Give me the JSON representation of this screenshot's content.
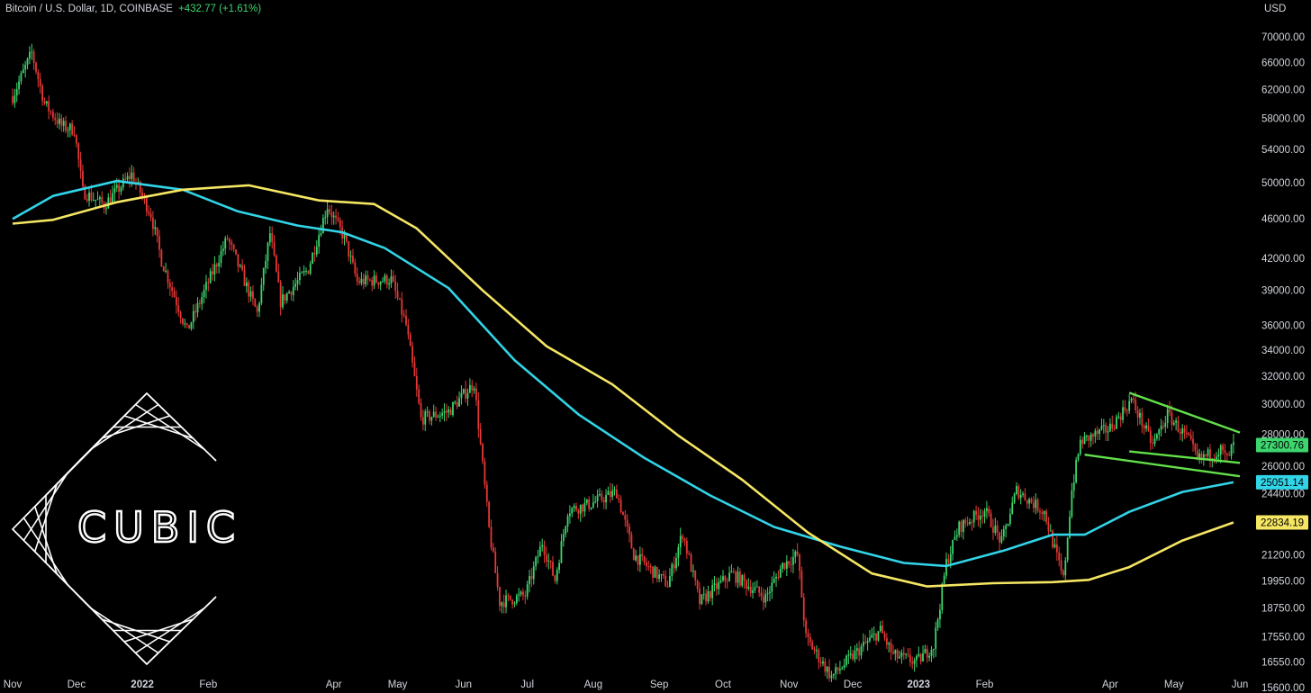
{
  "header": {
    "symbol": "Bitcoin / U.S. Dollar, 1D, COINBASE",
    "change": "+432.77 (+1.61%)",
    "currency": "USD"
  },
  "logo": {
    "text": "CUBIC"
  },
  "colors": {
    "background": "#000000",
    "up": "#3dd56d",
    "down": "#e53935",
    "ma_cyan": "#32d4e8",
    "ma_yellow": "#f5e663",
    "trendline": "#62e04a"
  },
  "chart_data": {
    "type": "candlestick",
    "scale": "log",
    "y_ticks": [
      "70000.00",
      "66000.00",
      "62000.00",
      "58000.00",
      "54000.00",
      "50000.00",
      "46000.00",
      "42000.00",
      "39000.00",
      "36000.00",
      "34000.00",
      "32000.00",
      "30000.00",
      "28000.00",
      "26000.00",
      "24400.00",
      "22800.00",
      "21200.00",
      "19950.00",
      "18750.00",
      "17550.00",
      "16550.00",
      "15600.00"
    ],
    "x_labels": [
      {
        "text": "Nov",
        "date": "2021-11-01",
        "bold": false
      },
      {
        "text": "Dec",
        "date": "2021-12-01",
        "bold": false
      },
      {
        "text": "2022",
        "date": "2022-01-01",
        "bold": true
      },
      {
        "text": "Feb",
        "date": "2022-02-01",
        "bold": false
      },
      {
        "text": "Apr",
        "date": "2022-04-01",
        "bold": false
      },
      {
        "text": "May",
        "date": "2022-05-01",
        "bold": false
      },
      {
        "text": "Jun",
        "date": "2022-06-01",
        "bold": false
      },
      {
        "text": "Jul",
        "date": "2022-07-01",
        "bold": false
      },
      {
        "text": "Aug",
        "date": "2022-08-01",
        "bold": false
      },
      {
        "text": "Sep",
        "date": "2022-09-01",
        "bold": false
      },
      {
        "text": "Oct",
        "date": "2022-10-01",
        "bold": false
      },
      {
        "text": "Nov",
        "date": "2022-11-01",
        "bold": false
      },
      {
        "text": "Dec",
        "date": "2022-12-01",
        "bold": false
      },
      {
        "text": "2023",
        "date": "2023-01-01",
        "bold": true
      },
      {
        "text": "Feb",
        "date": "2023-02-01",
        "bold": false
      },
      {
        "text": "Apr",
        "date": "2023-04-01",
        "bold": false
      },
      {
        "text": "May",
        "date": "2023-05-01",
        "bold": false
      },
      {
        "text": "Jun",
        "date": "2023-06-01",
        "bold": false
      }
    ],
    "price_path": [
      [
        "2021-11-01",
        61000
      ],
      [
        "2021-11-10",
        67500
      ],
      [
        "2021-11-16",
        60000
      ],
      [
        "2021-11-24",
        57000
      ],
      [
        "2021-11-30",
        56500
      ],
      [
        "2021-12-04",
        49000
      ],
      [
        "2021-12-14",
        47500
      ],
      [
        "2021-12-27",
        51000
      ],
      [
        "2022-01-05",
        46500
      ],
      [
        "2022-01-10",
        41800
      ],
      [
        "2022-01-22",
        35500
      ],
      [
        "2022-02-10",
        44000
      ],
      [
        "2022-02-24",
        37000
      ],
      [
        "2022-03-02",
        44500
      ],
      [
        "2022-03-07",
        38000
      ],
      [
        "2022-03-20",
        41000
      ],
      [
        "2022-03-29",
        47400
      ],
      [
        "2022-04-06",
        44000
      ],
      [
        "2022-04-12",
        39800
      ],
      [
        "2022-04-28",
        40000
      ],
      [
        "2022-05-05",
        36000
      ],
      [
        "2022-05-12",
        29000
      ],
      [
        "2022-05-25",
        29500
      ],
      [
        "2022-06-06",
        31500
      ],
      [
        "2022-06-13",
        22500
      ],
      [
        "2022-06-18",
        19000
      ],
      [
        "2022-06-30",
        19300
      ],
      [
        "2022-07-08",
        21800
      ],
      [
        "2022-07-14",
        20000
      ],
      [
        "2022-07-20",
        23500
      ],
      [
        "2022-07-30",
        23800
      ],
      [
        "2022-08-12",
        24500
      ],
      [
        "2022-08-20",
        21200
      ],
      [
        "2022-09-05",
        19800
      ],
      [
        "2022-09-12",
        22300
      ],
      [
        "2022-09-20",
        19000
      ],
      [
        "2022-10-05",
        20300
      ],
      [
        "2022-10-21",
        19200
      ],
      [
        "2022-10-29",
        20700
      ],
      [
        "2022-11-05",
        21200
      ],
      [
        "2022-11-09",
        17500
      ],
      [
        "2022-11-21",
        16000
      ],
      [
        "2022-12-05",
        17100
      ],
      [
        "2022-12-14",
        17800
      ],
      [
        "2022-12-20",
        16800
      ],
      [
        "2022-12-31",
        16550
      ],
      [
        "2023-01-08",
        17200
      ],
      [
        "2023-01-14",
        20800
      ],
      [
        "2023-01-20",
        22600
      ],
      [
        "2023-02-01",
        23500
      ],
      [
        "2023-02-09",
        21800
      ],
      [
        "2023-02-16",
        24600
      ],
      [
        "2023-03-01",
        23400
      ],
      [
        "2023-03-10",
        20000
      ],
      [
        "2023-03-14",
        24600
      ],
      [
        "2023-03-18",
        27500
      ],
      [
        "2023-04-01",
        28400
      ],
      [
        "2023-04-11",
        30300
      ],
      [
        "2023-04-21",
        27300
      ],
      [
        "2023-04-28",
        29300
      ],
      [
        "2023-05-08",
        27600
      ],
      [
        "2023-05-12",
        26400
      ],
      [
        "2023-05-23",
        27000
      ],
      [
        "2023-05-26",
        26400
      ],
      [
        "2023-05-29",
        27300
      ]
    ],
    "series": [
      {
        "name": "",
        "color": "#32d4e8",
        "points": [
          [
            "2021-11-01",
            46000
          ],
          [
            "2021-11-20",
            48500
          ],
          [
            "2021-12-20",
            50200
          ],
          [
            "2022-01-20",
            49200
          ],
          [
            "2022-02-15",
            46800
          ],
          [
            "2022-03-15",
            45300
          ],
          [
            "2022-04-05",
            44600
          ],
          [
            "2022-04-25",
            43000
          ],
          [
            "2022-05-25",
            39200
          ],
          [
            "2022-06-25",
            33200
          ],
          [
            "2022-07-25",
            29300
          ],
          [
            "2022-08-25",
            26500
          ],
          [
            "2022-09-25",
            24300
          ],
          [
            "2022-10-25",
            22600
          ],
          [
            "2022-11-25",
            21600
          ],
          [
            "2022-12-25",
            20800
          ],
          [
            "2023-01-14",
            20650
          ],
          [
            "2023-02-10",
            21400
          ],
          [
            "2023-03-05",
            22200
          ],
          [
            "2023-03-20",
            22200
          ],
          [
            "2023-04-10",
            23400
          ],
          [
            "2023-05-05",
            24500
          ],
          [
            "2023-05-29",
            25051.14
          ]
        ]
      },
      {
        "name": "",
        "color": "#f5e663",
        "points": [
          [
            "2021-11-01",
            45500
          ],
          [
            "2021-11-20",
            45900
          ],
          [
            "2021-12-20",
            47800
          ],
          [
            "2022-01-20",
            49200
          ],
          [
            "2022-02-20",
            49700
          ],
          [
            "2022-03-25",
            48000
          ],
          [
            "2022-04-20",
            47600
          ],
          [
            "2022-05-10",
            45000
          ],
          [
            "2022-06-10",
            39000
          ],
          [
            "2022-07-10",
            34300
          ],
          [
            "2022-08-10",
            31400
          ],
          [
            "2022-09-10",
            27900
          ],
          [
            "2022-10-10",
            25200
          ],
          [
            "2022-11-10",
            22300
          ],
          [
            "2022-12-10",
            20300
          ],
          [
            "2023-01-05",
            19700
          ],
          [
            "2023-02-05",
            19850
          ],
          [
            "2023-03-05",
            19900
          ],
          [
            "2023-03-22",
            20000
          ],
          [
            "2023-04-10",
            20600
          ],
          [
            "2023-05-05",
            21900
          ],
          [
            "2023-05-29",
            22834.19
          ]
        ]
      }
    ],
    "trendlines": [
      {
        "from": [
          "2023-04-10",
          30800
        ],
        "to": [
          "2023-06-01",
          28100
        ]
      },
      {
        "from": [
          "2023-04-10",
          26900
        ],
        "to": [
          "2023-06-01",
          26200
        ]
      },
      {
        "from": [
          "2023-03-20",
          26700
        ],
        "to": [
          "2023-06-01",
          25400
        ]
      }
    ],
    "price_tags": [
      {
        "text": "27300.76",
        "value": 27300.76,
        "color": "#3dd56d"
      },
      {
        "text": "25051.14",
        "value": 25051.14,
        "color": "#32d4e8"
      },
      {
        "text": "22834.19",
        "value": 22834.19,
        "color": "#f5e663"
      }
    ]
  }
}
